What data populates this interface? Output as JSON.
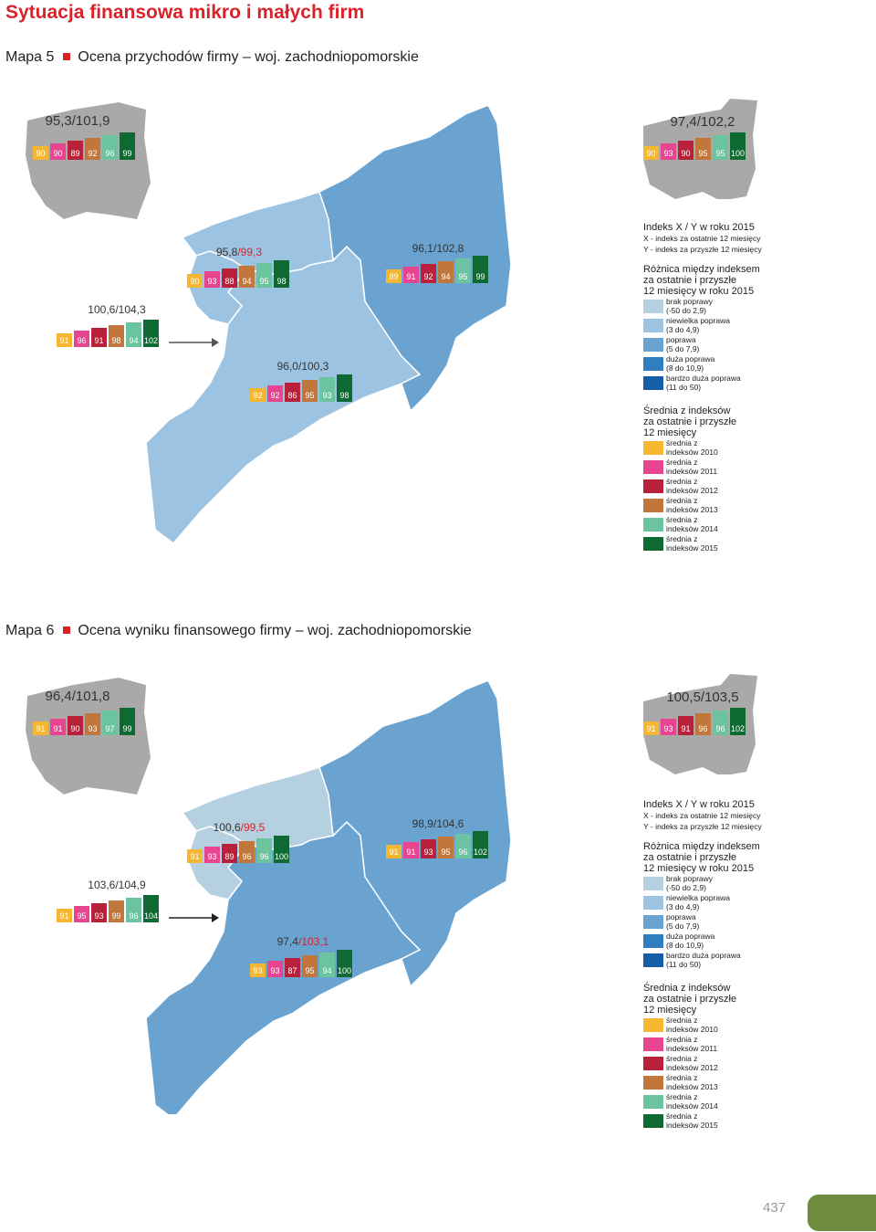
{
  "page_title": "Sytuacja finansowa mikro i małych firm",
  "page_number": "437",
  "colors": {
    "accent": "#d8232a",
    "brak_poprawy": "#b5d0e1",
    "niewielka_poprawa": "#9dc3e2",
    "poprawa": "#6aa3d0",
    "duza_poprawa": "#2f7fc0",
    "bardzo_duza_poprawa": "#135ea6",
    "y2010": "#f5b731",
    "y2011": "#e84590",
    "y2012": "#b82139",
    "y2013": "#c1773b",
    "y2014": "#6cc3a0",
    "y2015": "#0e6a32",
    "poland_grey": "#a9a9a9",
    "tab_green": "#6d8c3e"
  },
  "maps": [
    {
      "label": "Mapa 5",
      "title": "Ocena przychodów firmy – woj. zachodniopomorskie",
      "poland": {
        "index": "95,3/101,9",
        "bars": [
          "90",
          "90",
          "89",
          "92",
          "96",
          "99"
        ]
      },
      "voivodeship": {
        "index": "97,4/102,2",
        "bars": [
          "90",
          "93",
          "90",
          "95",
          "95",
          "100"
        ]
      },
      "regions": [
        {
          "name": "west-small",
          "index": "100,6/104,3",
          "bars": [
            "91",
            "96",
            "91",
            "98",
            "94",
            "102"
          ],
          "category": "niewielka poprawa"
        },
        {
          "name": "north-west",
          "index": "95,8/99,3",
          "bars": [
            "90",
            "93",
            "88",
            "94",
            "95",
            "98"
          ],
          "category": "niewielka poprawa"
        },
        {
          "name": "east",
          "index": "96,1/102,8",
          "bars": [
            "89",
            "91",
            "92",
            "94",
            "95",
            "99"
          ],
          "category": "poprawa"
        },
        {
          "name": "south",
          "index": "96,0/100,3",
          "bars": [
            "92",
            "92",
            "86",
            "95",
            "93",
            "98"
          ],
          "category": "niewielka poprawa"
        }
      ]
    },
    {
      "label": "Mapa 6",
      "title": "Ocena wyniku finansowego firmy – woj. zachodniopomorskie",
      "poland": {
        "index": "96,4/101,8",
        "bars": [
          "91",
          "91",
          "90",
          "93",
          "97",
          "99"
        ]
      },
      "voivodeship": {
        "index": "100,5/103,5",
        "bars": [
          "91",
          "93",
          "91",
          "96",
          "96",
          "102"
        ]
      },
      "regions": [
        {
          "name": "west-small",
          "index": "103,6/104,9",
          "bars": [
            "91",
            "95",
            "93",
            "99",
            "96",
            "104"
          ],
          "category": "brak poprawy"
        },
        {
          "name": "north-west",
          "index": "100,6/99,5",
          "bars": [
            "91",
            "93",
            "89",
            "96",
            "96",
            "100"
          ],
          "category": "brak poprawy"
        },
        {
          "name": "east",
          "index": "98,9/104,6",
          "bars": [
            "91",
            "91",
            "93",
            "95",
            "96",
            "102"
          ],
          "category": "poprawa"
        },
        {
          "name": "south",
          "index": "97,4/103,1",
          "bars": [
            "93",
            "93",
            "87",
            "95",
            "94",
            "100"
          ],
          "category": "poprawa"
        }
      ]
    }
  ],
  "legend": {
    "index_title": "Indeks X / Y w roku 2015",
    "x_desc": "X - indeks za ostatnie 12 miesięcy",
    "y_desc": "Y - indeks za przyszłe 12 miesięcy",
    "diff_title": [
      "Różnica między indeksem",
      "za ostatnie i przyszłe",
      "12 miesięcy w roku 2015"
    ],
    "diff_items": [
      {
        "l1": "brak poprawy",
        "l2": "(-50 do 2,9)"
      },
      {
        "l1": "niewielka poprawa",
        "l2": "(3 do 4,9)"
      },
      {
        "l1": "poprawa",
        "l2": "(5 do 7,9)"
      },
      {
        "l1": "duża poprawa",
        "l2": "(8 do 10,9)"
      },
      {
        "l1": "bardzo duża poprawa",
        "l2": "(11 do 50)"
      }
    ],
    "avg_title": [
      "Średnia z indeksów",
      "za ostatnie i przyszłe",
      "12 miesięcy"
    ],
    "avg_items": [
      {
        "l1": "średnia z",
        "l2": "indeksów 2010"
      },
      {
        "l1": "średnia z",
        "l2": "indeksów 2011"
      },
      {
        "l1": "średnia z",
        "l2": "indeksów 2012"
      },
      {
        "l1": "średnia z",
        "l2": "indeksów 2013"
      },
      {
        "l1": "średnia z",
        "l2": "indeksów 2014"
      },
      {
        "l1": "średnia z",
        "l2": "indeksów 2015"
      }
    ]
  }
}
